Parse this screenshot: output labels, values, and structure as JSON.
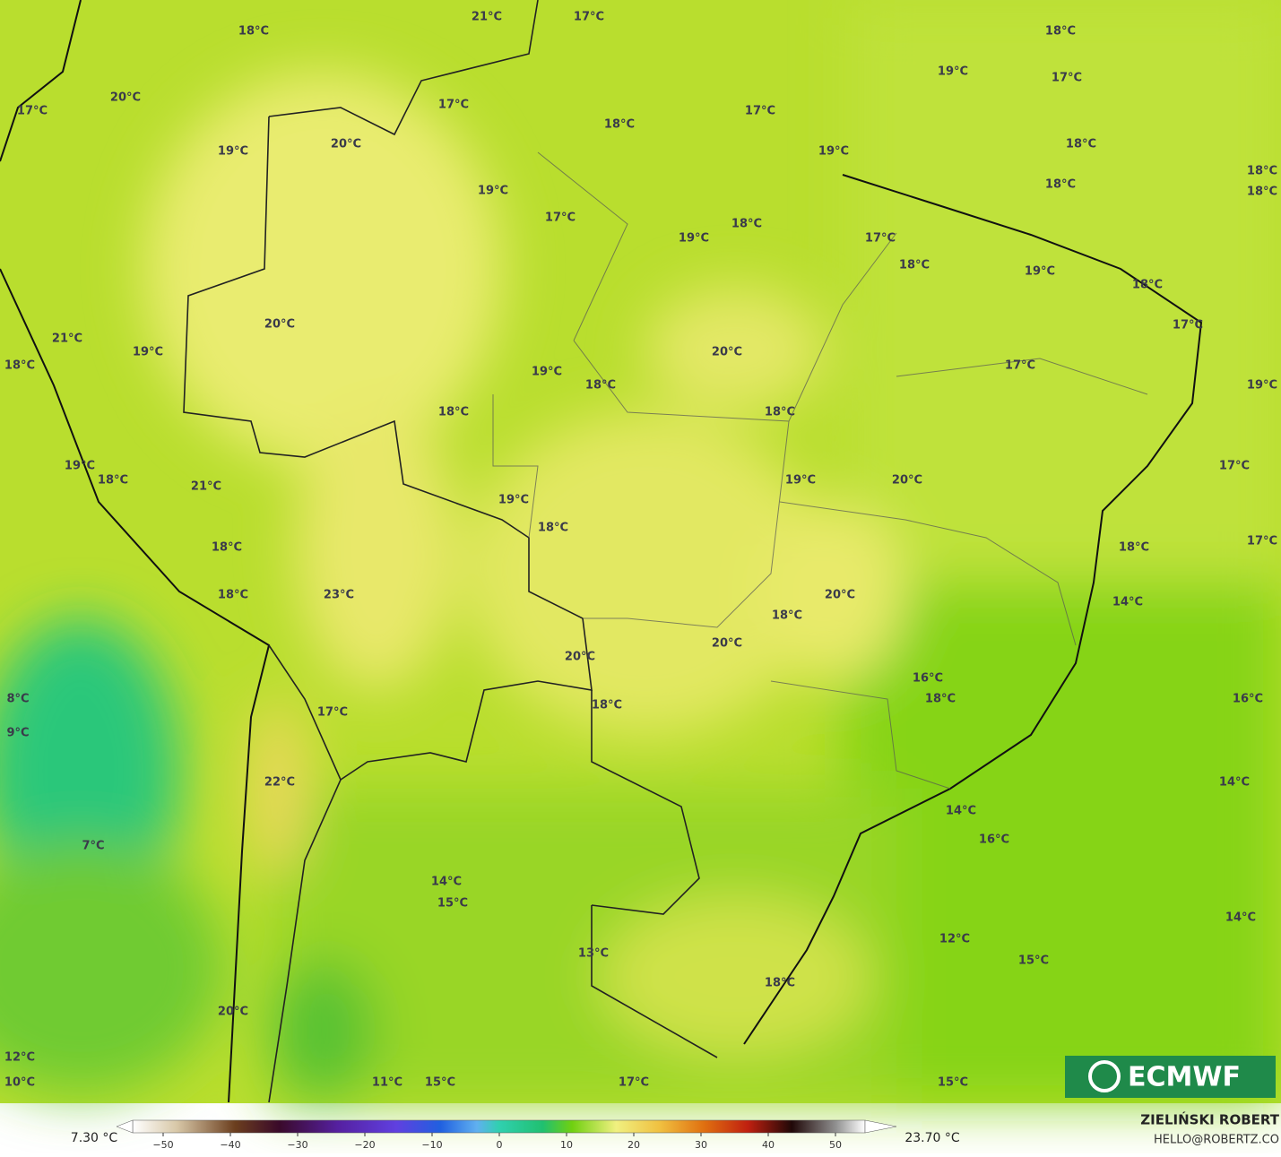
{
  "map": {
    "labels": [
      "21°C",
      "17°C",
      "18°C",
      "18°C",
      "19°C",
      "17°C",
      "20°C",
      "17°C",
      "17°C",
      "17°C",
      "18°C",
      "20°C",
      "18°C",
      "19°C",
      "19°C",
      "18°C",
      "18°C",
      "18°C",
      "19°C",
      "17°C",
      "18°C",
      "19°C",
      "17°C",
      "18°C",
      "19°C",
      "18°C",
      "20°C",
      "17°C",
      "21°C",
      "19°C",
      "20°C",
      "18°C",
      "17°C",
      "19°C",
      "18°C",
      "19°C",
      "18°C",
      "18°C",
      "19°C",
      "17°C",
      "18°C",
      "19°C",
      "20°C",
      "21°C",
      "19°C",
      "18°C",
      "18°C",
      "18°C",
      "17°C",
      "18°C",
      "23°C",
      "20°C",
      "14°C",
      "18°C",
      "20°C",
      "20°C",
      "16°C",
      "8°C",
      "18°C",
      "16°C",
      "18°C",
      "17°C",
      "9°C",
      "22°C",
      "14°C",
      "14°C",
      "16°C",
      "7°C",
      "14°C",
      "15°C",
      "14°C",
      "12°C",
      "13°C",
      "15°C",
      "18°C",
      "20°C",
      "12°C",
      "10°C",
      "11°C",
      "15°C",
      "17°C",
      "15°C"
    ],
    "logo": "ECMWF"
  },
  "colorbar": {
    "min_label": "7.30 °C",
    "max_label": "23.70 °C",
    "ticks": [
      {
        "value": -50,
        "label": "−50"
      },
      {
        "value": -40,
        "label": "−40"
      },
      {
        "value": -30,
        "label": "−30"
      },
      {
        "value": -20,
        "label": "−20"
      },
      {
        "value": -10,
        "label": "−10"
      },
      0,
      10,
      20,
      30,
      40,
      50
    ]
  },
  "credits": {
    "author": "ZIELIŃSKI ROBERT",
    "contact": "HELLO@ROBERTZ.CO"
  }
}
